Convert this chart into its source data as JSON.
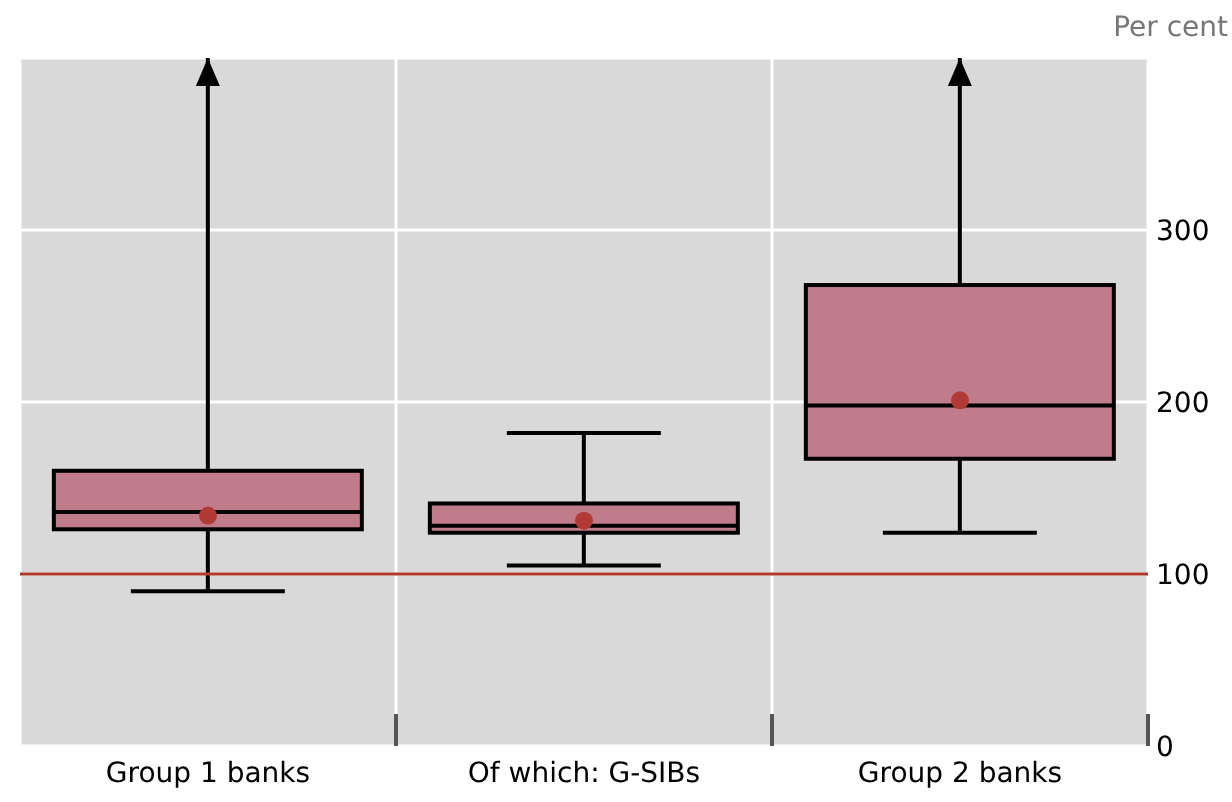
{
  "chart_data": {
    "type": "box",
    "ylabel": "Per cent",
    "categories": [
      "Group 1 banks",
      "Of which: G-SIBs",
      "Group 2 banks"
    ],
    "color": "#c17c8c",
    "boxes": [
      {
        "low": 90,
        "q1": 126,
        "median": 136,
        "q3": 160,
        "high": 400,
        "mean": 134
      },
      {
        "low": 105,
        "q1": 124,
        "median": 128,
        "q3": 141,
        "high": 182,
        "mean": 131
      },
      {
        "low": 124,
        "q1": 167,
        "median": 198,
        "q3": 268,
        "high": 400,
        "mean": 201
      }
    ],
    "ylim": [
      0,
      400
    ],
    "yticks": [
      0,
      100,
      200,
      300
    ],
    "grid": true,
    "marker": "circle",
    "ref_lines": [
      {
        "axis": "y",
        "value": 100,
        "color": "#b03a2e"
      }
    ]
  }
}
